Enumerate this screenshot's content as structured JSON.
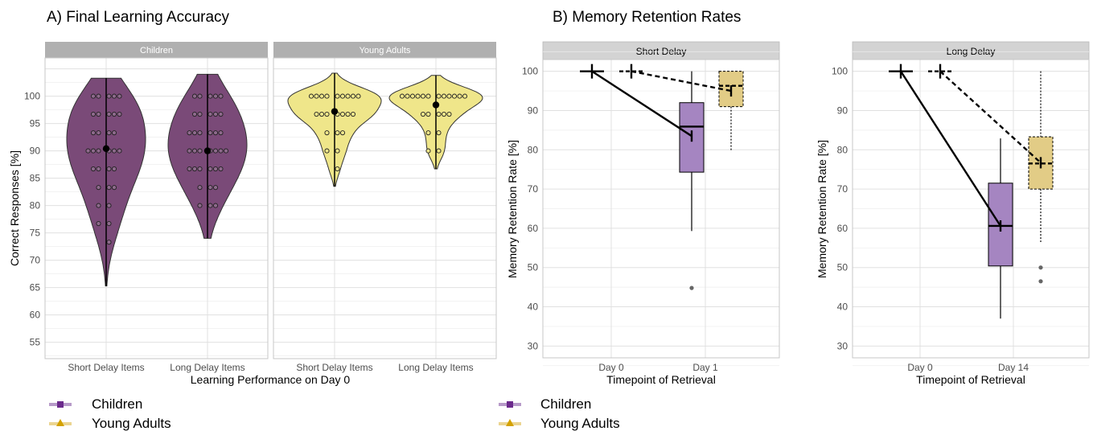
{
  "panel_a_title": "A) Final Learning Accuracy",
  "panel_b_title": "B) Memory Retention Rates",
  "legend_a": [
    "Children",
    "Young Adults"
  ],
  "legend_b": [
    "Children",
    "Young Adults"
  ],
  "colors": {
    "children": "#7a4a78",
    "children_box": "#a585c1",
    "adults": "#efe68a",
    "adults_box": "#e2cc86",
    "legend_children": "#6b2a8c",
    "legend_adults": "#d4a200"
  },
  "chart_data": [
    {
      "type": "violin",
      "facets": [
        "Children",
        "Young Adults"
      ],
      "categories": [
        "Short Delay Items",
        "Long Delay Items"
      ],
      "xlabel": "Learning Performance on Day 0",
      "ylabel": "Correct Responses [%]",
      "ylim": [
        52,
        107
      ],
      "yticks": [
        55,
        60,
        65,
        70,
        75,
        80,
        85,
        90,
        95,
        100
      ],
      "series": [
        {
          "name": "Children",
          "facet": "Children",
          "category": "Short Delay Items",
          "mean": 90.4,
          "range": [
            65.3,
            103.3
          ],
          "points": [
            100,
            100,
            100,
            100,
            100,
            96.7,
            96.7,
            96.7,
            96.7,
            96.7,
            93.3,
            93.3,
            93.3,
            93.3,
            90,
            90,
            90,
            90,
            90,
            90,
            86.7,
            86.7,
            86.7,
            86.7,
            83.3,
            83.3,
            83.3,
            80,
            80,
            76.7,
            76.7,
            73.3
          ]
        },
        {
          "name": "Children",
          "facet": "Children",
          "category": "Long Delay Items",
          "mean": 90,
          "range": [
            74,
            104
          ],
          "points": [
            100,
            100,
            100,
            100,
            100,
            96.7,
            96.7,
            96.7,
            96.7,
            96.7,
            93.3,
            93.3,
            93.3,
            93.3,
            93.3,
            93.3,
            90,
            90,
            90,
            90,
            90,
            90,
            90,
            86.7,
            86.7,
            86.7,
            86.7,
            86.7,
            86.7,
            83.3,
            83.3,
            83.3,
            80,
            80,
            80
          ]
        },
        {
          "name": "Young Adults",
          "facet": "Young Adults",
          "category": "Short Delay Items",
          "mean": 97.2,
          "range": [
            83.5,
            104.2
          ],
          "points": [
            100,
            100,
            100,
            100,
            100,
            100,
            100,
            100,
            100,
            96.7,
            96.7,
            96.7,
            96.7,
            96.7,
            96.7,
            96.7,
            93.3,
            93.3,
            93.3,
            90,
            90,
            86.7
          ]
        },
        {
          "name": "Young Adults",
          "facet": "Young Adults",
          "category": "Long Delay Items",
          "mean": 98.4,
          "range": [
            86.7,
            103.8
          ],
          "points": [
            100,
            100,
            100,
            100,
            100,
            100,
            100,
            100,
            100,
            100,
            100,
            100,
            96.7,
            96.7,
            96.7,
            96.7,
            96.7,
            93.3,
            93.3,
            90,
            90
          ]
        }
      ]
    },
    {
      "type": "box",
      "title": "Short Delay",
      "categories": [
        "Day 0",
        "Day 1"
      ],
      "xlabel": "Timepoint of Retrieval",
      "ylabel": "Memory Retention Rate [%]",
      "ylim": [
        27,
        103
      ],
      "yticks": [
        30,
        40,
        50,
        60,
        70,
        80,
        90,
        100
      ],
      "series": [
        {
          "name": "Children",
          "line": "solid",
          "means": [
            100,
            83.5
          ],
          "box": {
            "q1": 74.3,
            "median": 85.9,
            "q3": 92,
            "whisker_low": 59.3,
            "whisker_high": 100
          },
          "outliers": [
            44.8
          ]
        },
        {
          "name": "Young Adults",
          "line": "dashed",
          "means": [
            100,
            95
          ],
          "box": {
            "q1": 91,
            "median": 96.3,
            "q3": 100,
            "whisker_low": 79.8,
            "whisker_high": 100
          },
          "outliers": []
        }
      ]
    },
    {
      "type": "box",
      "title": "Long Delay",
      "categories": [
        "Day 0",
        "Day 14"
      ],
      "xlabel": "Timepoint of Retrieval",
      "ylabel": "Memory Retention Rate [%]",
      "ylim": [
        27,
        103
      ],
      "yticks": [
        30,
        40,
        50,
        60,
        70,
        80,
        90,
        100
      ],
      "series": [
        {
          "name": "Children",
          "line": "solid",
          "means": [
            100,
            60.6
          ],
          "box": {
            "q1": 50.4,
            "median": 60.6,
            "q3": 71.5,
            "whisker_low": 37,
            "whisker_high": 82.9
          },
          "outliers": []
        },
        {
          "name": "Young Adults",
          "line": "dashed",
          "means": [
            100,
            76.7
          ],
          "box": {
            "q1": 70,
            "median": 76.5,
            "q3": 83.3,
            "whisker_low": 56.5,
            "whisker_high": 100
          },
          "outliers": [
            50,
            46.5
          ]
        }
      ]
    }
  ]
}
